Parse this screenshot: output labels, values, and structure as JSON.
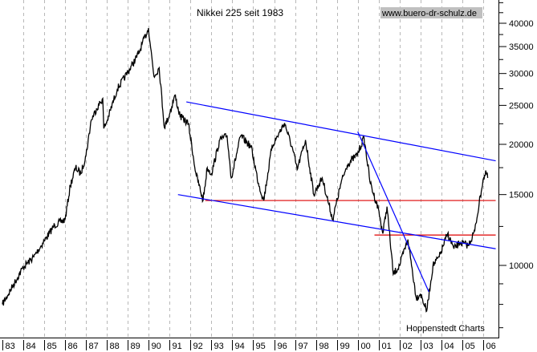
{
  "chart_data": {
    "type": "line",
    "title": "Nikkei 225 seit 1983",
    "watermark": "www.buero-dr-schulz.de",
    "source": "Hoppenstedt Charts",
    "y_scale": "log",
    "ylim": [
      6650,
      45700
    ],
    "xlim": [
      1983,
      2006.7
    ],
    "grid": "vertical dashed at each year",
    "y_ticks": [
      10000,
      15000,
      20000,
      25000,
      30000,
      35000,
      40000
    ],
    "y_tick_labels": [
      "10000",
      "15000",
      "20000",
      "25000",
      "30000",
      "35000",
      "40000"
    ],
    "x_tick_labels": [
      "83",
      "84",
      "85",
      "86",
      "87",
      "88",
      "89",
      "90",
      "91",
      "92",
      "93",
      "94",
      "95",
      "96",
      "97",
      "98",
      "99",
      "00",
      "01",
      "02",
      "03",
      "04",
      "05",
      "06"
    ],
    "series": [
      {
        "color": "#000000",
        "x": [
          1983.0,
          1983.5,
          1984.0,
          1984.5,
          1985.0,
          1985.5,
          1986.0,
          1986.25,
          1986.5,
          1986.75,
          1987.0,
          1987.25,
          1987.5,
          1987.8,
          1987.85,
          1988.0,
          1988.5,
          1989.0,
          1989.5,
          1989.99,
          1990.25,
          1990.5,
          1990.75,
          1991.0,
          1991.25,
          1991.5,
          1991.9,
          1992.25,
          1992.6,
          1992.8,
          1993.0,
          1993.4,
          1993.75,
          1993.95,
          1994.4,
          1994.9,
          1995.25,
          1995.5,
          1995.9,
          1996.5,
          1996.9,
          1997.1,
          1997.5,
          1997.9,
          1998.3,
          1998.8,
          1999.2,
          1999.5,
          1999.99,
          2000.3,
          2000.6,
          2000.99,
          2001.2,
          2001.4,
          2001.7,
          2002.0,
          2002.4,
          2002.8,
          2003.0,
          2003.3,
          2003.6,
          2003.9,
          2004.3,
          2004.6,
          2004.9,
          2005.3,
          2005.6,
          2005.99,
          2006.15,
          2006.22
        ],
        "y": [
          8000,
          8900,
          9900,
          10500,
          11500,
          12600,
          13000,
          15800,
          17500,
          16900,
          18800,
          23000,
          24500,
          26000,
          21900,
          22800,
          27500,
          30200,
          33500,
          38900,
          29500,
          31000,
          22000,
          23800,
          26500,
          23500,
          22500,
          17000,
          14500,
          17500,
          16900,
          20500,
          21000,
          16500,
          21000,
          19700,
          16000,
          14500,
          19800,
          22600,
          19300,
          17300,
          20500,
          15000,
          16500,
          13000,
          16000,
          17800,
          18900,
          20800,
          16000,
          13800,
          12000,
          14000,
          9500,
          10000,
          11600,
          8300,
          8500,
          7700,
          10000,
          10500,
          12000,
          11000,
          11400,
          11200,
          12200,
          16300,
          17000,
          16500
        ]
      }
    ],
    "trend_lines": [
      {
        "color": "#0000ff",
        "from": [
          1991.8,
          25500
        ],
        "to": [
          2006.6,
          18200
        ]
      },
      {
        "color": "#0000ff",
        "from": [
          1991.4,
          15000
        ],
        "to": [
          2006.6,
          11000
        ]
      },
      {
        "color": "#0000ff",
        "from": [
          2000.0,
          21500
        ],
        "to": [
          2003.4,
          8600
        ]
      }
    ],
    "horizontal_lines": [
      {
        "color": "#dd0000",
        "value": 14500,
        "from": 1992.7,
        "to": 2006.6
      },
      {
        "color": "#dd0000",
        "value": 11900,
        "from": 2000.8,
        "to": 2006.6
      }
    ]
  }
}
